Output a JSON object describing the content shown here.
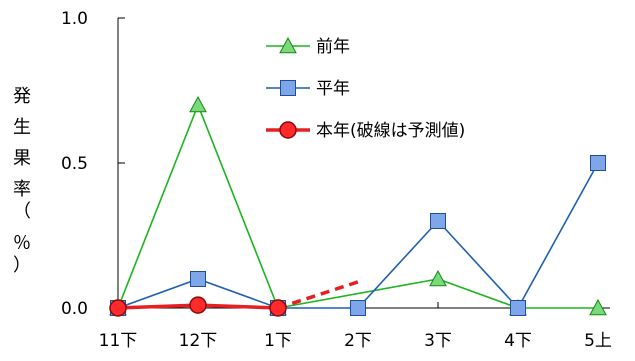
{
  "chart_data": {
    "type": "line",
    "categories": [
      "11下",
      "12下",
      "1下",
      "2下",
      "3下",
      "4下",
      "5上"
    ],
    "ylabel": "発生果率（％）",
    "ylabel_chars": [
      "発",
      "生",
      "果",
      "率",
      "（",
      "％",
      "）"
    ],
    "ylim": [
      0,
      1.0
    ],
    "yticks": [
      "0.0",
      "0.5",
      "1.0"
    ],
    "ytick_values": [
      0,
      0.5,
      1.0
    ],
    "grid": false,
    "legend_position": "top-center",
    "series": [
      {
        "name": "前年",
        "color": "#1db51d",
        "marker": "triangle",
        "values": [
          0.0,
          0.7,
          0.0,
          null,
          0.1,
          0.0,
          0.0
        ]
      },
      {
        "name": "平年",
        "color": "#1f5fb4",
        "marker": "square",
        "values": [
          0.0,
          0.1,
          0.0,
          0.0,
          0.3,
          0.0,
          0.5
        ]
      },
      {
        "name": "本年(破線は予測値)",
        "color": "#e62020",
        "marker": "circle",
        "values": [
          0.0,
          0.01,
          0.0,
          null,
          null,
          null,
          null
        ],
        "forecast": {
          "from": "1下",
          "to": "2下",
          "to_value": 0.09
        }
      }
    ]
  }
}
